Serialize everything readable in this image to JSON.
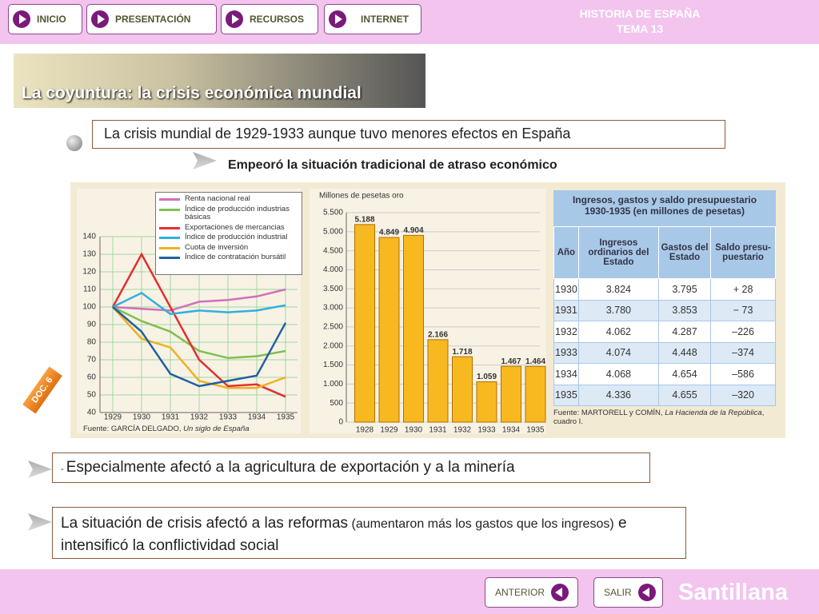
{
  "header": {
    "nav": [
      "INICIO",
      "PRESENTACIÓN",
      "RECURSOS",
      "INTERNET"
    ],
    "subject": "HISTORIA DE ESPAÑA",
    "unit": "TEMA 13"
  },
  "title": "La coyuntura: la crisis económica mundial",
  "point": "La crisis mundial de 1929-1933 aunque tuvo menores efectos en España",
  "subpoint": "Empeoró la situación tradicional de atraso económico",
  "doc_tag": "DOC. 6",
  "line_chart": {
    "type": "line",
    "categories": [
      "1929",
      "1930",
      "1931",
      "1932",
      "1933",
      "1934",
      "1935"
    ],
    "ylim": [
      40,
      140
    ],
    "yticks": [
      40,
      50,
      60,
      70,
      80,
      90,
      100,
      110,
      120,
      130,
      140
    ],
    "grid": true,
    "series": [
      {
        "name": "Renta nacional real",
        "color": "#d070b8",
        "values": [
          100,
          99,
          98,
          103,
          104,
          106,
          110
        ]
      },
      {
        "name": "Índice de producción industrias básicas",
        "color": "#80c050",
        "values": [
          100,
          92,
          86,
          75,
          71,
          72,
          75
        ]
      },
      {
        "name": "Exportaciones de mercancias",
        "color": "#e03030",
        "values": [
          100,
          130,
          100,
          70,
          55,
          56,
          49
        ]
      },
      {
        "name": "Índice de producción industrial",
        "color": "#30b0e0",
        "values": [
          100,
          108,
          96,
          98,
          97,
          98,
          101
        ]
      },
      {
        "name": "Cuota de inversión",
        "color": "#f0b020",
        "values": [
          100,
          82,
          77,
          58,
          54,
          54,
          60
        ]
      },
      {
        "name": "Índice de contratación bursátil",
        "color": "#2060a0",
        "values": [
          100,
          86,
          62,
          55,
          58,
          61,
          91
        ]
      }
    ],
    "source": "Fuente: GARCÍA DELGADO, ",
    "source_work": "Un siglo de España"
  },
  "bar_chart": {
    "type": "bar",
    "y_label": "Millones de pesetas oro",
    "color": "#f8b820",
    "categories": [
      "1928",
      "1929",
      "1930",
      "1931",
      "1932",
      "1933",
      "1934",
      "1935"
    ],
    "values": [
      5188,
      4849,
      4904,
      2166,
      1718,
      1059,
      1467,
      1464
    ],
    "value_labels": [
      "5.188",
      "4.849",
      "4.904",
      "2.166",
      "1.718",
      "1.059",
      "1.467",
      "1.464"
    ],
    "ylim": [
      0,
      5500
    ],
    "yticks": [
      0,
      500,
      {
        "value": 1000,
        "label": "1.000"
      },
      {
        "value": 1500,
        "label": "1.500"
      },
      {
        "value": 2000,
        "label": "2.000"
      },
      {
        "value": 2500,
        "label": "2.500"
      },
      {
        "value": 3000,
        "label": "3.000"
      },
      {
        "value": 3500,
        "label": "3.500"
      },
      {
        "value": 4000,
        "label": "4.000"
      },
      {
        "value": 4500,
        "label": "4.500"
      },
      {
        "value": 5000,
        "label": "5.000"
      },
      {
        "value": 5500,
        "label": "5.500"
      }
    ],
    "grid": true
  },
  "table": {
    "title": "Ingresos, gastos y saldo presupuestario 1930-1935 (en millones de pesetas)",
    "headers": [
      "Año",
      "Ingresos ordinarios del Estado",
      "Gastos del Estado",
      "Saldo presu-puestario"
    ],
    "rows": [
      [
        "1930",
        "3.824",
        "3.795",
        "+ 28"
      ],
      [
        "1931",
        "3.780",
        "3.853",
        "− 73"
      ],
      [
        "1932",
        "4.062",
        "4.287",
        "–226"
      ],
      [
        "1933",
        "4.074",
        "4.448",
        "–374"
      ],
      [
        "1934",
        "4.068",
        "4.654",
        "–586"
      ],
      [
        "1935",
        "4.336",
        "4.655",
        "–320"
      ]
    ],
    "source": "Fuente: MARTORELL y COMÍN, ",
    "source_work": "La Hacienda de la República",
    "source_end": ", cuadro I."
  },
  "bullet2": {
    "dash": "- ",
    "text": "Especialmente afectó a la agricultura de exportación y a la minería"
  },
  "bullet3": {
    "main": "La situación de crisis afectó a las reformas",
    "aside": " (aumentaron más los gastos que los ingresos)",
    "end": " e intensificó la conflictividad social"
  },
  "footer": {
    "prev": "ANTERIOR",
    "exit": "SALIR",
    "brand": "Santillana"
  }
}
